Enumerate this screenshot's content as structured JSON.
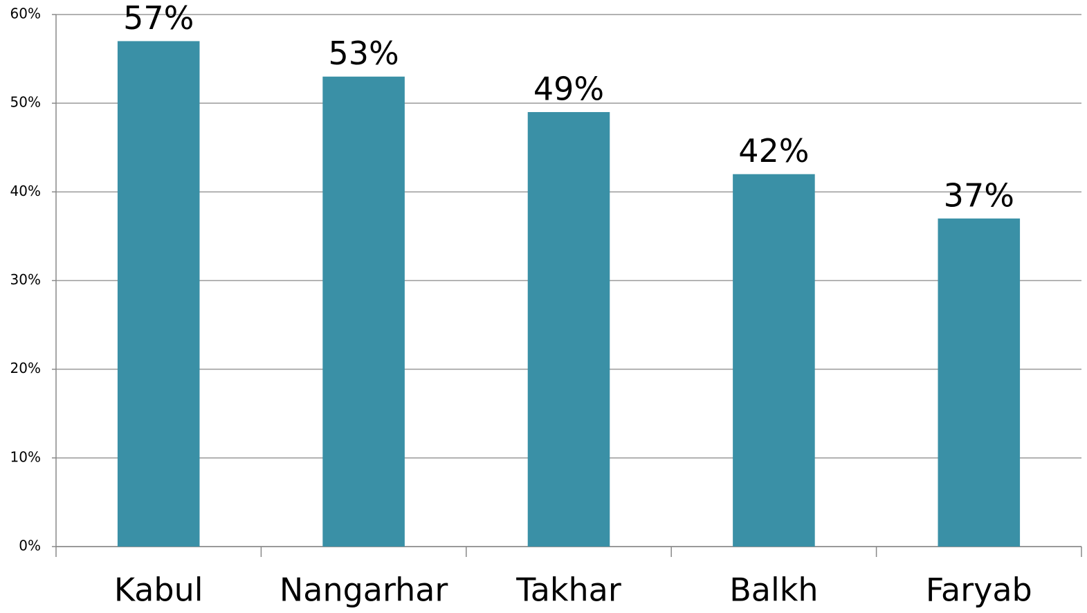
{
  "chart_data": {
    "type": "bar",
    "categories": [
      "Kabul",
      "Nangarhar",
      "Takhar",
      "Balkh",
      "Faryab"
    ],
    "values": [
      57,
      53,
      49,
      42,
      37
    ],
    "value_labels": [
      "57%",
      "53%",
      "49%",
      "42%",
      "37%"
    ],
    "color": "#3a90a6",
    "ylim": [
      0,
      60
    ],
    "yticks": [
      {
        "value": 0,
        "label": "0%"
      },
      {
        "value": 10,
        "label": "10%"
      },
      {
        "value": 20,
        "label": "20%"
      },
      {
        "value": 30,
        "label": "30%"
      },
      {
        "value": 40,
        "label": "40%"
      },
      {
        "value": 50,
        "label": "50%"
      },
      {
        "value": 60,
        "label": "60%"
      }
    ],
    "grid": true
  }
}
